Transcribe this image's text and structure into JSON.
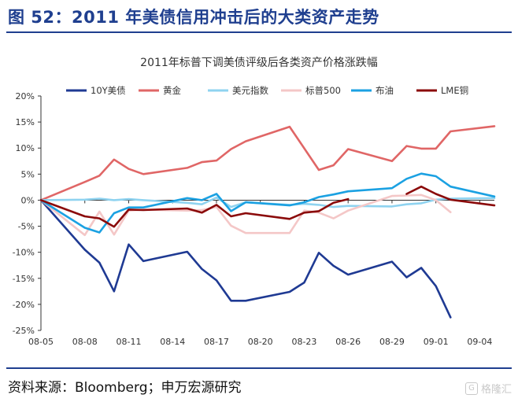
{
  "figure": {
    "title": "图 52：2011 年美债信用冲击后的大类资产走势",
    "source": "资料来源：Bloomberg；申万宏源研究",
    "watermark": "格隆汇",
    "watermark_logo": "G"
  },
  "chart_data": {
    "type": "line",
    "title": "2011年标普下调美债评级后各类资产价格涨跌幅",
    "xlabel": "",
    "ylabel": "",
    "x_ticks": [
      "08-05",
      "08-08",
      "08-11",
      "08-14",
      "08-17",
      "08-20",
      "08-23",
      "08-26",
      "08-29",
      "09-01",
      "09-04"
    ],
    "x_range": [
      0,
      31
    ],
    "y_ticks": [
      "20%",
      "15%",
      "10%",
      "5%",
      "0%",
      "-5%",
      "-10%",
      "-15%",
      "-20%",
      "-25%"
    ],
    "ylim": [
      -25,
      20
    ],
    "grid": false,
    "legend_position": "top",
    "series": [
      {
        "name": "10Y美债",
        "color": "#1f3a93",
        "points": [
          [
            0,
            0
          ],
          [
            3,
            -9.5
          ],
          [
            4,
            -12
          ],
          [
            5,
            -17.5
          ],
          [
            6,
            -8.5
          ],
          [
            7,
            -11.7
          ],
          [
            10,
            -9.9
          ],
          [
            11,
            -13.2
          ],
          [
            12,
            -15.4
          ],
          [
            13,
            -19.3
          ],
          [
            14,
            -19.3
          ],
          [
            17,
            -17.6
          ],
          [
            18,
            -15.8
          ],
          [
            19,
            -10.1
          ],
          [
            20,
            -12.6
          ],
          [
            21,
            -14.3
          ],
          [
            24,
            -11.8
          ],
          [
            25,
            -14.8
          ],
          [
            26,
            -13
          ],
          [
            27,
            -16.5
          ],
          [
            28,
            -22.5
          ]
        ]
      },
      {
        "name": "黄金",
        "color": "#e06666",
        "points": [
          [
            0,
            0
          ],
          [
            3,
            3.5
          ],
          [
            4,
            4.7
          ],
          [
            5,
            7.8
          ],
          [
            6,
            6
          ],
          [
            7,
            5
          ],
          [
            10,
            6.2
          ],
          [
            11,
            7.3
          ],
          [
            12,
            7.6
          ],
          [
            13,
            9.8
          ],
          [
            14,
            11.3
          ],
          [
            17,
            14.1
          ],
          [
            19,
            5.8
          ],
          [
            20,
            6.7
          ],
          [
            21,
            9.8
          ],
          [
            24,
            7.5
          ],
          [
            25,
            10.4
          ],
          [
            26,
            9.9
          ],
          [
            27,
            9.9
          ],
          [
            28,
            13.2
          ],
          [
            31,
            14.2
          ]
        ]
      },
      {
        "name": "美元指数",
        "color": "#8fd3f0",
        "points": [
          [
            0,
            0
          ],
          [
            3,
            0.1
          ],
          [
            4,
            0.3
          ],
          [
            5,
            0
          ],
          [
            6,
            0.2
          ],
          [
            7,
            0
          ],
          [
            10,
            -0.5
          ],
          [
            11,
            -0.8
          ],
          [
            12,
            0.5
          ],
          [
            13,
            -1.3
          ],
          [
            14,
            -0.4
          ],
          [
            17,
            -0.9
          ],
          [
            18,
            -0.7
          ],
          [
            19,
            -0.9
          ],
          [
            20,
            -1.3
          ],
          [
            21,
            -1.1
          ],
          [
            24,
            -1.2
          ],
          [
            25,
            -0.8
          ],
          [
            26,
            -0.6
          ],
          [
            27,
            0.1
          ],
          [
            28,
            0.3
          ],
          [
            31,
            0.4
          ]
        ]
      },
      {
        "name": "标普500",
        "color": "#f4c7c7",
        "points": [
          [
            0,
            0
          ],
          [
            3,
            -6.7
          ],
          [
            4,
            -2.2
          ],
          [
            5,
            -6.6
          ],
          [
            6,
            -2
          ],
          [
            7,
            -1.8
          ],
          [
            10,
            -2
          ],
          [
            11,
            -1.9
          ],
          [
            12,
            -1.3
          ],
          [
            13,
            -4.9
          ],
          [
            14,
            -6.3
          ],
          [
            17,
            -6.3
          ],
          [
            18,
            -2
          ],
          [
            19,
            -2.4
          ],
          [
            20,
            -3.5
          ],
          [
            21,
            -2
          ],
          [
            24,
            0.8
          ],
          [
            25,
            0.9
          ],
          [
            26,
            1
          ],
          [
            27,
            0
          ],
          [
            28,
            -2.3
          ]
        ]
      },
      {
        "name": "布油",
        "color": "#1ba1e2",
        "points": [
          [
            0,
            0
          ],
          [
            3,
            -5.3
          ],
          [
            4,
            -6.2
          ],
          [
            5,
            -2.5
          ],
          [
            6,
            -1.4
          ],
          [
            7,
            -1.4
          ],
          [
            10,
            0.4
          ],
          [
            11,
            0
          ],
          [
            12,
            1.2
          ],
          [
            13,
            -2.1
          ],
          [
            14,
            -0.4
          ],
          [
            17,
            -1
          ],
          [
            18,
            -0.4
          ],
          [
            19,
            0.6
          ],
          [
            20,
            1.1
          ],
          [
            21,
            1.7
          ],
          [
            24,
            2.3
          ],
          [
            25,
            4.1
          ],
          [
            26,
            5.1
          ],
          [
            27,
            4.6
          ],
          [
            28,
            2.6
          ],
          [
            31,
            0.7
          ]
        ]
      },
      {
        "name": "LME铜",
        "color": "#8b0a0a",
        "points": [
          [
            0,
            0
          ],
          [
            3,
            -3.1
          ],
          [
            4,
            -3.5
          ],
          [
            5,
            -5.1
          ],
          [
            6,
            -1.8
          ],
          [
            7,
            -1.9
          ],
          [
            10,
            -1.6
          ],
          [
            11,
            -2.4
          ],
          [
            12,
            -0.9
          ],
          [
            13,
            -3.1
          ],
          [
            14,
            -2.5
          ],
          [
            17,
            -3.6
          ],
          [
            18,
            -2.4
          ],
          [
            19,
            -2.1
          ],
          [
            20,
            -0.5
          ],
          [
            21,
            0.2
          ]
        ]
      },
      {
        "name": "LME铜",
        "color": "#8b0a0a",
        "legend": false,
        "points": [
          [
            25,
            1.2
          ],
          [
            26,
            2.6
          ],
          [
            27,
            1.2
          ],
          [
            28,
            0.1
          ],
          [
            31,
            -1
          ]
        ]
      }
    ]
  }
}
